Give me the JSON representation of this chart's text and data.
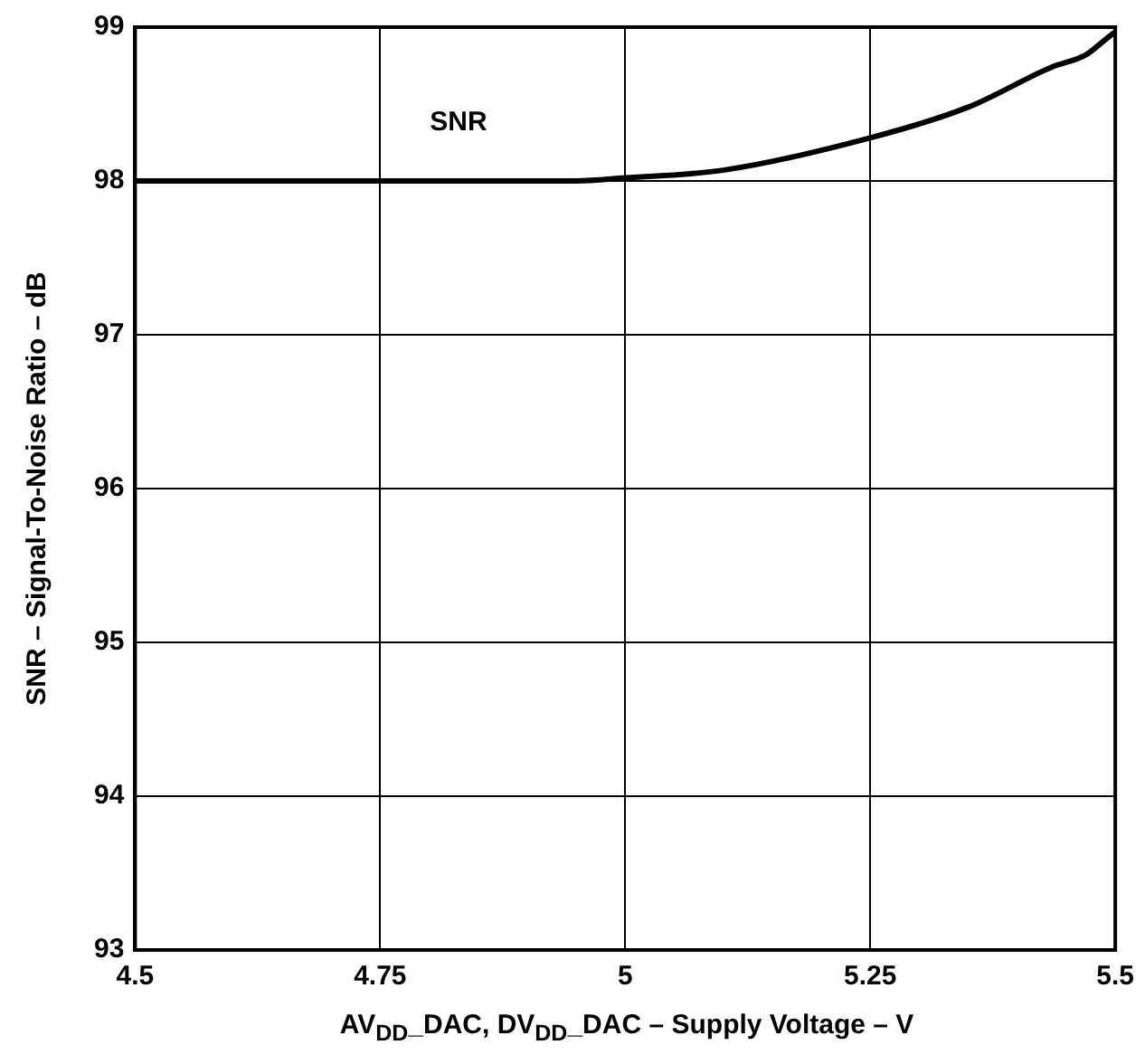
{
  "chart_data": {
    "type": "line",
    "xlabel": "AV$_{DD}$_DAC, DV$_{DD}$_DAC – Supply Voltage – V",
    "ylabel": "SNR – Signal-To-Noise Ratio – dB",
    "x": [
      4.5,
      4.75,
      4.95,
      5,
      5.1,
      5.25,
      5.35,
      5.435,
      5.47,
      5.49,
      5.5
    ],
    "series": [
      {
        "name": "SNR",
        "color": "#000000",
        "values": [
          98,
          98,
          98,
          98.02,
          98.07,
          98.28,
          98.48,
          98.74,
          98.82,
          98.92,
          98.97
        ]
      }
    ],
    "xlim": [
      4.5,
      5.5
    ],
    "xticks": [
      4.5,
      4.75,
      5,
      5.25,
      5.5
    ],
    "ylim": [
      93,
      99
    ],
    "yticks": [
      93,
      94,
      95,
      96,
      97,
      98,
      99
    ],
    "grid": true,
    "legend": false,
    "marker": "none",
    "line_style": "solid"
  }
}
